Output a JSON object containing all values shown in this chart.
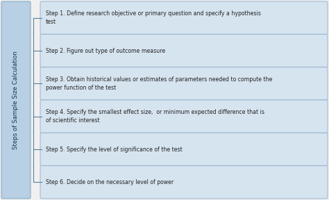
{
  "title_text": "Steps of Sample Size Calculation",
  "steps": [
    "Step 1. Define research objective or primary question and specify a hypothesis\ntest",
    "Step 2. Figure out type of outcome measure",
    "Step 3. Obtain historical values or estimates of parameters needed to compute the\npower function of the test",
    "Step 4. Specify the smallest effect size,  or minimum expected difference that is\nof scientific interest",
    "Step 5. Specify the level of significance of the test",
    "Step 6. Decide on the necessary level of power"
  ],
  "box_facecolor": "#d6e4f0",
  "box_edgecolor": "#9ab3cc",
  "sidebar_facecolor": "#b8cfe4",
  "sidebar_edgecolor": "#8aadc8",
  "background_color": "#f0f0f0",
  "text_color": "#222222",
  "sidebar_text_color": "#1a3050",
  "line_color": "#5580a0",
  "fig_width": 4.74,
  "fig_height": 2.88,
  "dpi": 100
}
